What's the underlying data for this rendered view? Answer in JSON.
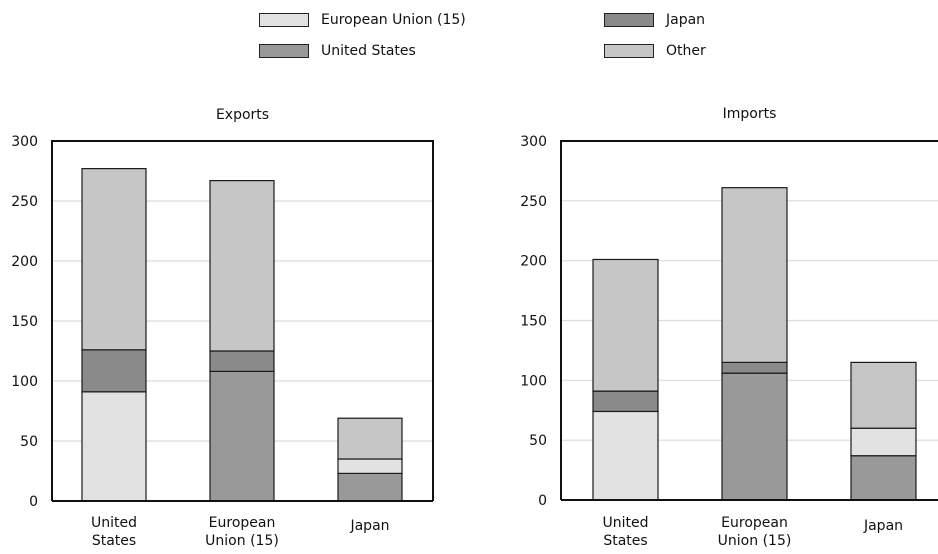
{
  "legend": {
    "items": [
      {
        "label": "European Union (15)",
        "color": "#e2e2e2"
      },
      {
        "label": "United States",
        "color": "#999999"
      },
      {
        "label": "Japan",
        "color": "#8a8a8a"
      },
      {
        "label": "Other",
        "color": "#c6c6c6"
      }
    ]
  },
  "chart_data": [
    {
      "type": "bar",
      "stacked": true,
      "title": "Exports",
      "categories": [
        "United\nStates",
        "European\nUnion (15)",
        "Japan"
      ],
      "ylim": [
        0,
        300
      ],
      "yticks": [
        0,
        50,
        100,
        150,
        200,
        250,
        300
      ],
      "grid": true,
      "segments": [
        [
          {
            "series": "European Union (15)",
            "value": 91,
            "color": "#e2e2e2"
          },
          {
            "series": "Japan",
            "value": 35,
            "color": "#8a8a8a"
          },
          {
            "series": "Other",
            "value": 151,
            "color": "#c6c6c6"
          }
        ],
        [
          {
            "series": "United States",
            "value": 108,
            "color": "#999999"
          },
          {
            "series": "Japan",
            "value": 17,
            "color": "#8a8a8a"
          },
          {
            "series": "Other",
            "value": 142,
            "color": "#c6c6c6"
          }
        ],
        [
          {
            "series": "United States",
            "value": 23,
            "color": "#999999"
          },
          {
            "series": "European Union (15)",
            "value": 12,
            "color": "#e2e2e2"
          },
          {
            "series": "Other",
            "value": 34,
            "color": "#c6c6c6"
          }
        ]
      ]
    },
    {
      "type": "bar",
      "stacked": true,
      "title": "Imports",
      "categories": [
        "United\nStates",
        "European\nUnion (15)",
        "Japan"
      ],
      "ylim": [
        0,
        300
      ],
      "yticks": [
        0,
        50,
        100,
        150,
        200,
        250,
        300
      ],
      "grid": true,
      "segments": [
        [
          {
            "series": "European Union (15)",
            "value": 74,
            "color": "#e2e2e2"
          },
          {
            "series": "Japan",
            "value": 17,
            "color": "#8a8a8a"
          },
          {
            "series": "Other",
            "value": 110,
            "color": "#c6c6c6"
          }
        ],
        [
          {
            "series": "United States",
            "value": 106,
            "color": "#999999"
          },
          {
            "series": "Japan",
            "value": 9,
            "color": "#8a8a8a"
          },
          {
            "series": "Other",
            "value": 146,
            "color": "#c6c6c6"
          }
        ],
        [
          {
            "series": "United States",
            "value": 37,
            "color": "#999999"
          },
          {
            "series": "European Union (15)",
            "value": 23,
            "color": "#e2e2e2"
          },
          {
            "series": "Other",
            "value": 55,
            "color": "#c6c6c6"
          }
        ]
      ]
    }
  ]
}
